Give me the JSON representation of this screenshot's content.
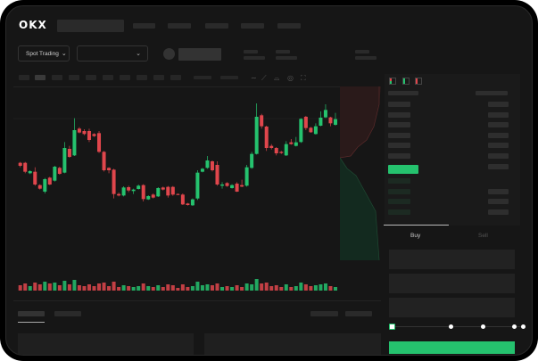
{
  "header": {
    "logo": "OKX"
  },
  "market": {
    "mode_selector": "Spot Trading"
  },
  "toolbar": {
    "icons": [
      "line-icon",
      "ruler-icon",
      "magnet-icon",
      "settings-icon",
      "fullscreen-icon"
    ]
  },
  "orderbook": {
    "view_icons": [
      "both-sides-icon",
      "bids-only-icon",
      "asks-only-icon"
    ]
  },
  "trade": {
    "tabs": [
      {
        "label": "Buy",
        "active": true
      },
      {
        "label": "Sell",
        "active": false
      }
    ],
    "slider_levels": [
      0,
      25,
      50,
      75,
      100
    ],
    "slider_value": 0
  },
  "colors": {
    "up": "#25c26e",
    "down": "#e0464c",
    "background": "#161616"
  },
  "chart_data": {
    "type": "candlestick",
    "candles": [
      [
        175,
        178,
        160,
        165
      ],
      [
        175,
        178,
        140,
        145
      ],
      [
        140,
        150,
        137,
        147
      ],
      [
        145,
        160,
        98,
        102
      ],
      [
        100,
        103,
        85,
        88
      ],
      [
        78,
        124,
        72,
        120
      ],
      [
        125,
        128,
        100,
        102
      ],
      [
        115,
        165,
        112,
        162
      ],
      [
        158,
        162,
        135,
        138
      ],
      [
        142,
        245,
        140,
        225
      ],
      [
        222,
        232,
        192,
        195
      ],
      [
        200,
        325,
        198,
        285
      ],
      [
        290,
        295,
        274,
        277
      ],
      [
        282,
        288,
        268,
        272
      ],
      [
        282,
        290,
        245,
        252
      ],
      [
        272,
        275,
        262,
        265
      ],
      [
        275,
        282,
        208,
        212
      ],
      [
        212,
        215,
        146,
        150
      ],
      [
        158,
        160,
        140,
        150
      ],
      [
        152,
        155,
        55,
        70
      ],
      [
        70,
        75,
        62,
        65
      ],
      [
        65,
        96,
        62,
        92
      ],
      [
        93,
        98,
        76,
        82
      ],
      [
        80,
        88,
        70,
        85
      ],
      [
        87,
        102,
        85,
        98
      ],
      [
        100,
        103,
        45,
        53
      ],
      [
        52,
        66,
        50,
        63
      ],
      [
        68,
        72,
        55,
        58
      ],
      [
        62,
        93,
        60,
        90
      ],
      [
        92,
        95,
        82,
        85
      ],
      [
        94,
        97,
        58,
        65
      ],
      [
        94,
        97,
        64,
        68
      ],
      [
        70,
        72,
        66,
        68
      ],
      [
        68,
        72,
        33,
        35
      ],
      [
        38,
        40,
        31,
        33
      ],
      [
        32,
        55,
        30,
        52
      ],
      [
        55,
        150,
        50,
        142
      ],
      [
        145,
        158,
        143,
        155
      ],
      [
        158,
        198,
        155,
        183
      ],
      [
        180,
        183,
        146,
        150
      ],
      [
        168,
        180,
        98,
        102
      ],
      [
        98,
        110,
        88,
        102
      ],
      [
        107,
        110,
        94,
        97
      ],
      [
        90,
        103,
        88,
        100
      ],
      [
        105,
        110,
        77,
        78
      ],
      [
        100,
        118,
        93,
        95
      ],
      [
        98,
        168,
        95,
        160
      ],
      [
        158,
        212,
        155,
        205
      ],
      [
        205,
        375,
        203,
        330
      ],
      [
        335,
        340,
        290,
        298
      ],
      [
        297,
        300,
        215,
        225
      ],
      [
        232,
        238,
        220,
        225
      ],
      [
        225,
        228,
        200,
        207
      ],
      [
        212,
        215,
        205,
        208
      ],
      [
        200,
        248,
        198,
        238
      ],
      [
        244,
        255,
        236,
        238
      ],
      [
        232,
        262,
        230,
        244
      ],
      [
        245,
        325,
        242,
        323
      ],
      [
        330,
        333,
        285,
        292
      ],
      [
        293,
        296,
        276,
        278
      ],
      [
        272,
        308,
        270,
        298
      ],
      [
        300,
        348,
        298,
        327
      ],
      [
        328,
        372,
        326,
        353
      ],
      [
        328,
        330,
        298,
        308
      ],
      [
        303,
        343,
        300,
        322
      ]
    ],
    "volumes": [
      6,
      8,
      5,
      9,
      7,
      10,
      8,
      9,
      6,
      11,
      7,
      12,
      6,
      5,
      7,
      5,
      8,
      9,
      5,
      10,
      4,
      6,
      5,
      4,
      5,
      8,
      5,
      4,
      6,
      4,
      7,
      6,
      3,
      7,
      4,
      5,
      10,
      6,
      7,
      6,
      8,
      4,
      5,
      4,
      6,
      4,
      8,
      7,
      13,
      8,
      9,
      5,
      6,
      4,
      7,
      4,
      5,
      9,
      7,
      5,
      6,
      7,
      8,
      5,
      4
    ]
  }
}
